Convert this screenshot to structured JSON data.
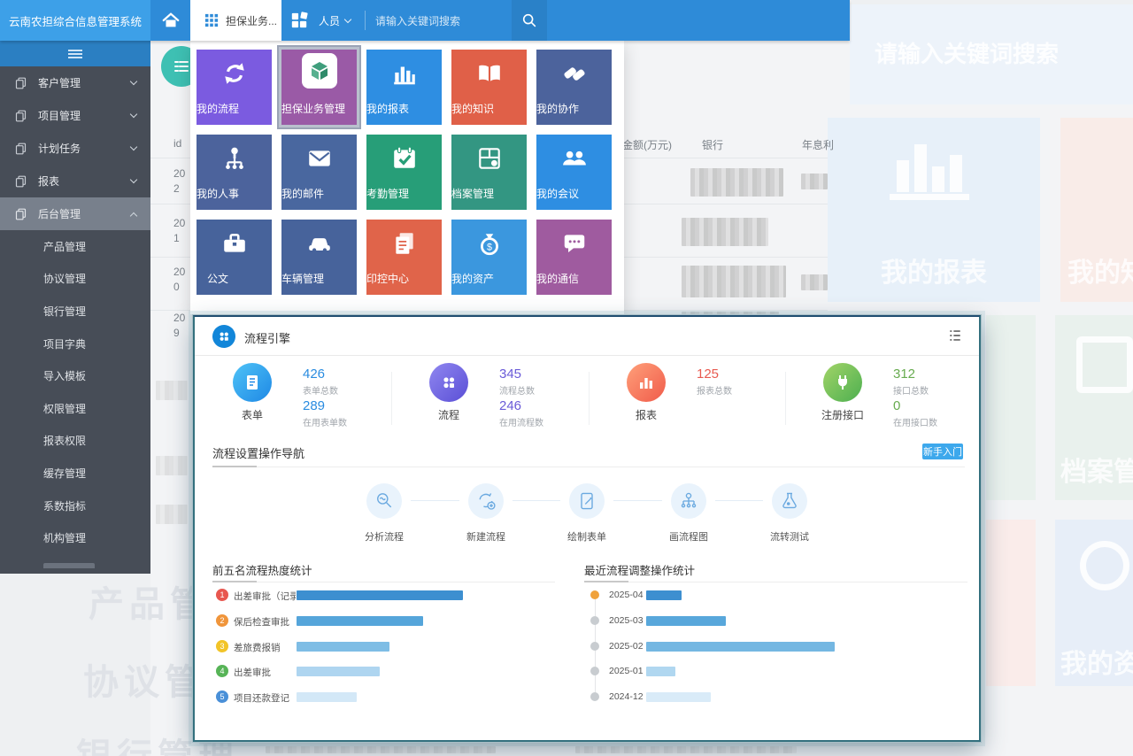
{
  "topbar": {
    "brand": "云南农担综合信息管理系统",
    "active_tab": "担保业务...",
    "user_menu": "人员",
    "search_placeholder": "请输入关键词搜索"
  },
  "sidebar": {
    "items": [
      {
        "label": "客户管理"
      },
      {
        "label": "项目管理"
      },
      {
        "label": "计划任务"
      },
      {
        "label": "报表"
      },
      {
        "label": "后台管理"
      }
    ],
    "subitems": [
      "产品管理",
      "协议管理",
      "银行管理",
      "项目字典",
      "导入模板",
      "权限管理",
      "报表权限",
      "缓存管理",
      "系数指标",
      "机构管理"
    ]
  },
  "launcher": {
    "tiles": [
      {
        "label": "我的流程",
        "color": "#7b5be0"
      },
      {
        "label": "担保业务管理",
        "color": "#9a5aa6"
      },
      {
        "label": "我的报表",
        "color": "#2e8ee2"
      },
      {
        "label": "我的知识",
        "color": "#e06048"
      },
      {
        "label": "我的协作",
        "color": "#4c639c"
      },
      {
        "label": "我的人事",
        "color": "#4c639c"
      },
      {
        "label": "我的邮件",
        "color": "#49679f"
      },
      {
        "label": "考勤管理",
        "color": "#279e78"
      },
      {
        "label": "档案管理",
        "color": "#339682"
      },
      {
        "label": "我的会议",
        "color": "#2e8ee2"
      },
      {
        "label": "公文",
        "color": "#47639b"
      },
      {
        "label": "车辆管理",
        "color": "#47639b"
      },
      {
        "label": "印控中心",
        "color": "#e0644a"
      },
      {
        "label": "我的资产",
        "color": "#3b97de"
      },
      {
        "label": "我的通信",
        "color": "#9f5b9f"
      }
    ]
  },
  "modal": {
    "title": "流程引擎",
    "stats": [
      {
        "label": "表单",
        "num1": "426",
        "cap1": "表单总数",
        "num2": "289",
        "cap2": "在用表单数",
        "color": "#2a8ce0",
        "circle": "linear-gradient(135deg,#4fc3f7,#1e88e5)"
      },
      {
        "label": "流程",
        "num1": "345",
        "cap1": "流程总数",
        "num2": "246",
        "cap2": "在用流程数",
        "color": "#6a5bd8",
        "circle": "linear-gradient(135deg,#9087f0,#5a4fd6)"
      },
      {
        "label": "报表",
        "num1": "125",
        "cap1": "报表总数",
        "color": "#e85a50",
        "circle": "linear-gradient(135deg,#ffa07a,#f05b4a)"
      },
      {
        "label": "注册接口",
        "num1": "312",
        "cap1": "接口总数",
        "num2": "0",
        "cap2": "在用接口数",
        "color": "#67ab4f",
        "circle": "linear-gradient(135deg,#a2d468,#4caf50)"
      }
    ],
    "nav_title": "流程设置操作导航",
    "nav_button": "新手入门",
    "nav_button_color": "#3da8ec",
    "steps": [
      "分析流程",
      "新建流程",
      "绘制表单",
      "画流程图",
      "流转测试"
    ]
  },
  "chart_data": [
    {
      "type": "bar",
      "title": "前五名流程热度统计",
      "orientation": "horizontal",
      "categories": [
        "出差审批（记录...",
        "保后检查审批",
        "差旅费报销",
        "出差审批",
        "项目还款登记"
      ],
      "ranks": [
        "1",
        "2",
        "3",
        "4",
        "5"
      ],
      "values": [
        188,
        143,
        105,
        94,
        68
      ],
      "xmax": 300,
      "unit": "relative bar length (no numeric axis shown)",
      "rank_colors": [
        "#e8574f",
        "#f0953b",
        "#f2c428",
        "#57b457",
        "#4a90d8"
      ],
      "bar_colors": [
        "#3d8fd0",
        "#55a5da",
        "#7ebde5",
        "#aed5f0",
        "#d3e8f7"
      ],
      "legend": "none",
      "grid": false
    },
    {
      "type": "bar",
      "title": "最近流程调整操作统计",
      "orientation": "horizontal",
      "categories": [
        "2025-04",
        "2025-03",
        "2025-02",
        "2025-01",
        "2024-12"
      ],
      "values": [
        40,
        90,
        213,
        33,
        73
      ],
      "xmax": 300,
      "unit": "relative bar length (no numeric axis shown)",
      "dot_colors": [
        "#f0a23c",
        "#c8ccd0",
        "#c8ccd0",
        "#c8ccd0",
        "#c8ccd0"
      ],
      "bar_colors": [
        "#3d8fd0",
        "#58a7db",
        "#74b7e2",
        "#b0d7f0",
        "#d9ebf8"
      ],
      "legend": "none",
      "grid": false
    }
  ],
  "background": {
    "table": {
      "headers": [
        "id",
        "金额(万元)",
        "银行",
        "年息利"
      ],
      "ids": [
        "202",
        "201",
        "200",
        "209"
      ]
    },
    "ghost_search": "请输入关键词搜索",
    "ghost_tiles": {
      "report": "我的报表",
      "knowledge": "我的知识",
      "archive": "档案管理",
      "assets": "我的资产"
    },
    "ghost_words": [
      "产品管理",
      "协议管理",
      "银行管理"
    ]
  }
}
